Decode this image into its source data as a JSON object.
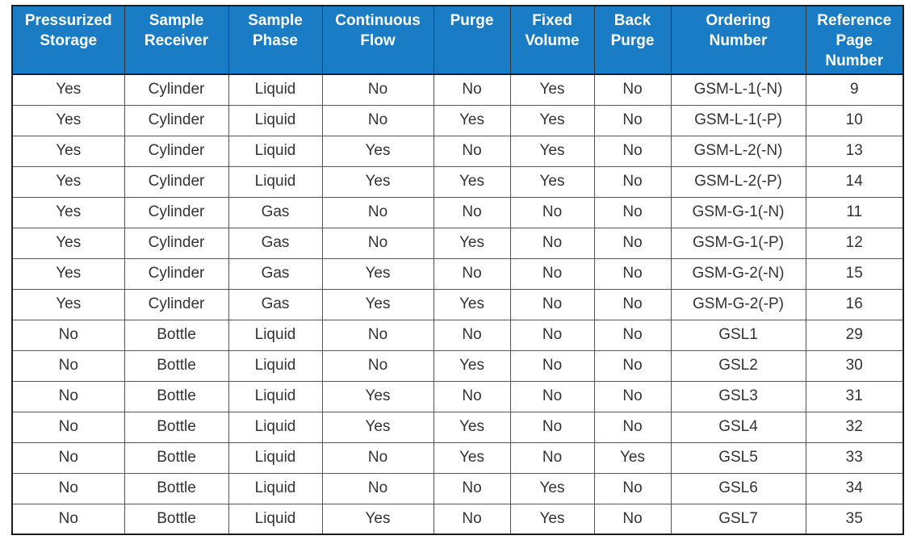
{
  "table": {
    "headers": [
      "Pressurized\nStorage",
      "Sample\nReceiver",
      "Sample\nPhase",
      "Continuous\nFlow",
      "Purge",
      "Fixed\nVolume",
      "Back\nPurge",
      "Ordering\nNumber",
      "Reference\nPage\nNumber"
    ],
    "rows": [
      [
        "Yes",
        "Cylinder",
        "Liquid",
        "No",
        "No",
        "Yes",
        "No",
        "GSM-L-1(-N)",
        "9"
      ],
      [
        "Yes",
        "Cylinder",
        "Liquid",
        "No",
        "Yes",
        "Yes",
        "No",
        "GSM-L-1(-P)",
        "10"
      ],
      [
        "Yes",
        "Cylinder",
        "Liquid",
        "Yes",
        "No",
        "Yes",
        "No",
        "GSM-L-2(-N)",
        "13"
      ],
      [
        "Yes",
        "Cylinder",
        "Liquid",
        "Yes",
        "Yes",
        "Yes",
        "No",
        "GSM-L-2(-P)",
        "14"
      ],
      [
        "Yes",
        "Cylinder",
        "Gas",
        "No",
        "No",
        "No",
        "No",
        "GSM-G-1(-N)",
        "11"
      ],
      [
        "Yes",
        "Cylinder",
        "Gas",
        "No",
        "Yes",
        "No",
        "No",
        "GSM-G-1(-P)",
        "12"
      ],
      [
        "Yes",
        "Cylinder",
        "Gas",
        "Yes",
        "No",
        "No",
        "No",
        "GSM-G-2(-N)",
        "15"
      ],
      [
        "Yes",
        "Cylinder",
        "Gas",
        "Yes",
        "Yes",
        "No",
        "No",
        "GSM-G-2(-P)",
        "16"
      ],
      [
        "No",
        "Bottle",
        "Liquid",
        "No",
        "No",
        "No",
        "No",
        "GSL1",
        "29"
      ],
      [
        "No",
        "Bottle",
        "Liquid",
        "No",
        "Yes",
        "No",
        "No",
        "GSL2",
        "30"
      ],
      [
        "No",
        "Bottle",
        "Liquid",
        "Yes",
        "No",
        "No",
        "No",
        "GSL3",
        "31"
      ],
      [
        "No",
        "Bottle",
        "Liquid",
        "Yes",
        "Yes",
        "No",
        "No",
        "GSL4",
        "32"
      ],
      [
        "No",
        "Bottle",
        "Liquid",
        "No",
        "Yes",
        "No",
        "Yes",
        "GSL5",
        "33"
      ],
      [
        "No",
        "Bottle",
        "Liquid",
        "No",
        "No",
        "Yes",
        "No",
        "GSL6",
        "34"
      ],
      [
        "No",
        "Bottle",
        "Liquid",
        "Yes",
        "No",
        "Yes",
        "No",
        "GSL7",
        "35"
      ]
    ]
  },
  "colors": {
    "header_bg": "#1a7cc4",
    "header_text": "#ffffff",
    "cell_text": "#333333",
    "border": "#1d1d1d"
  }
}
